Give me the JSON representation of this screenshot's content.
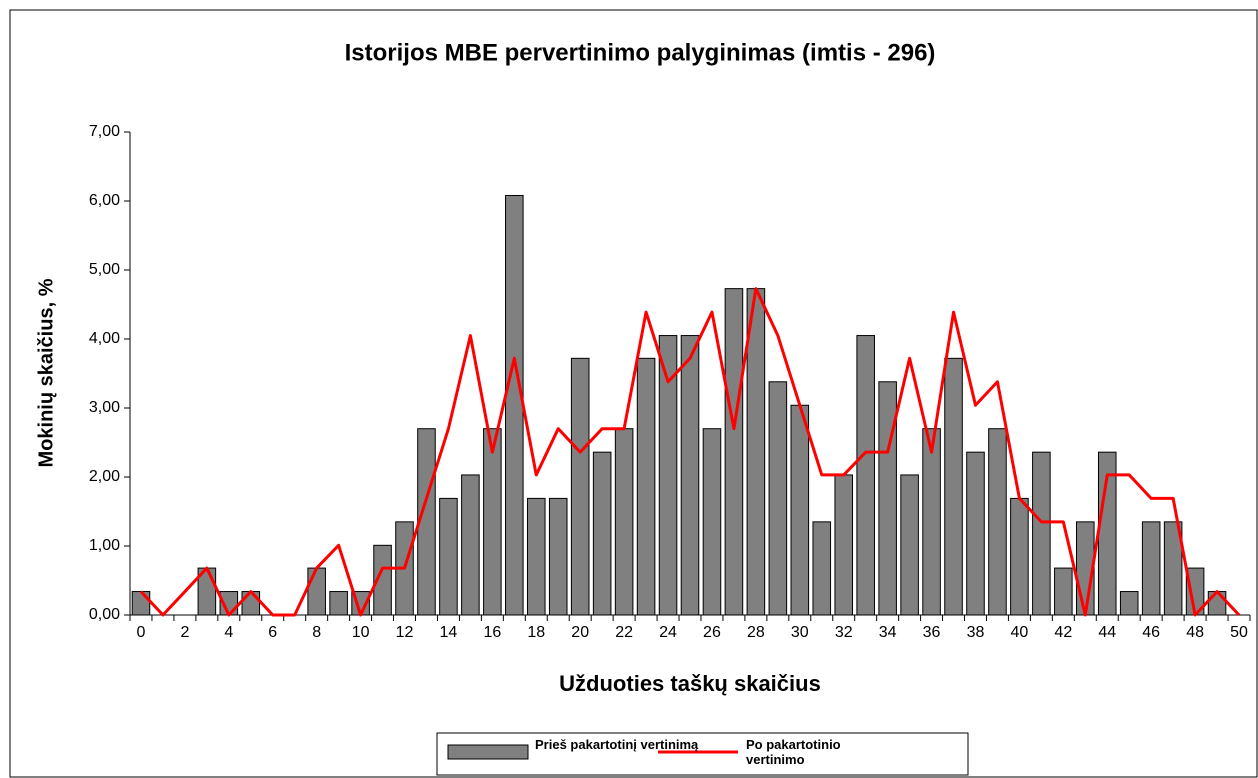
{
  "chart_data": {
    "type": "bar_line",
    "title": "Istorijos MBE pervertinimo palyginimas (imtis - 296)",
    "xlabel": "Užduoties taškų skaičius",
    "ylabel": "Mokinių skaičius, %",
    "categories": [
      0,
      null,
      2,
      null,
      4,
      null,
      6,
      null,
      8,
      null,
      10,
      null,
      12,
      null,
      14,
      null,
      16,
      null,
      18,
      null,
      20,
      null,
      22,
      null,
      24,
      null,
      26,
      null,
      28,
      null,
      30,
      null,
      32,
      null,
      34,
      null,
      36,
      null,
      38,
      null,
      40,
      null,
      42,
      null,
      44,
      null,
      46,
      null,
      48,
      null,
      50
    ],
    "ylim": [
      0,
      7
    ],
    "yticks": [
      {
        "value": 0,
        "label": "0,00"
      },
      {
        "value": 1,
        "label": "1,00"
      },
      {
        "value": 2,
        "label": "2,00"
      },
      {
        "value": 3,
        "label": "3,00"
      },
      {
        "value": 4,
        "label": "4,00"
      },
      {
        "value": 5,
        "label": "5,00"
      },
      {
        "value": 6,
        "label": "6,00"
      },
      {
        "value": 7,
        "label": "7,00"
      }
    ],
    "series": [
      {
        "name": "Prieš pakartotinį vertinimą",
        "type": "bar",
        "color": "#808080",
        "values": [
          0.34,
          0,
          0,
          0.68,
          0.34,
          0.34,
          0,
          0,
          0.68,
          0.34,
          0.34,
          1.01,
          1.35,
          2.7,
          1.69,
          2.03,
          2.7,
          6.08,
          1.69,
          1.69,
          3.72,
          2.36,
          2.7,
          3.72,
          4.05,
          4.05,
          2.7,
          4.73,
          4.73,
          3.38,
          3.04,
          1.35,
          2.03,
          4.05,
          3.38,
          2.03,
          2.7,
          3.72,
          2.36,
          2.7,
          1.69,
          2.36,
          0.68,
          1.35,
          2.36,
          0.34,
          1.35,
          1.35,
          0.68,
          0.34,
          0
        ]
      },
      {
        "name": "Po pakartotinio vertinimo",
        "type": "line",
        "color": "#ff0000",
        "values": [
          0.34,
          0,
          0.34,
          0.68,
          0,
          0.34,
          0,
          0,
          0.68,
          1.01,
          0,
          0.68,
          0.68,
          1.69,
          2.7,
          4.05,
          2.36,
          3.72,
          2.03,
          2.7,
          2.36,
          2.7,
          2.7,
          4.39,
          3.38,
          3.72,
          4.39,
          2.7,
          4.73,
          4.05,
          3.04,
          2.03,
          2.03,
          2.36,
          2.36,
          3.72,
          2.36,
          4.39,
          3.04,
          3.38,
          1.69,
          1.35,
          1.35,
          0,
          2.03,
          2.03,
          1.69,
          1.69,
          0,
          0.34,
          0
        ]
      }
    ]
  }
}
